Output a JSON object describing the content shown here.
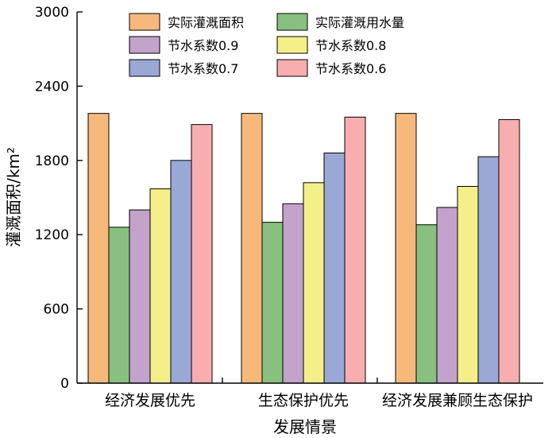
{
  "chart_data": {
    "type": "bar",
    "title": "",
    "xlabel": "发展情景",
    "ylabel": "灌溉面积/km²",
    "ylim": [
      0,
      3000
    ],
    "yticks": [
      0,
      600,
      1200,
      1800,
      2400,
      3000
    ],
    "categories": [
      "经济发展优先",
      "生态保护优先",
      "经济发展兼顾生态保护"
    ],
    "series": [
      {
        "name": "实际灌溉面积",
        "color": "#f6b97b",
        "values": [
          2180,
          2180,
          2180
        ]
      },
      {
        "name": "实际灌溉用水量",
        "color": "#88c17f",
        "values": [
          1260,
          1300,
          1280
        ]
      },
      {
        "name": "节水系数0.9",
        "color": "#c3a2cb",
        "values": [
          1400,
          1450,
          1420
        ]
      },
      {
        "name": "节水系数0.8",
        "color": "#f5ef8a",
        "values": [
          1570,
          1620,
          1590
        ]
      },
      {
        "name": "节水系数0.7",
        "color": "#9aa8d6",
        "values": [
          1800,
          1860,
          1830
        ]
      },
      {
        "name": "节水系数0.6",
        "color": "#f8aeae",
        "values": [
          2090,
          2150,
          2130
        ]
      }
    ],
    "legend": "top-left",
    "grid": false
  }
}
